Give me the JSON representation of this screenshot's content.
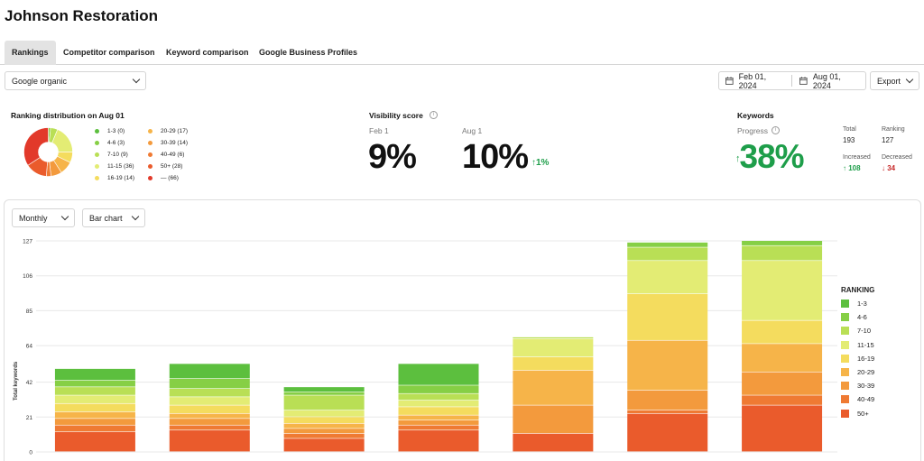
{
  "page": {
    "title": "Johnson Restoration"
  },
  "tabs": [
    {
      "label": "Rankings",
      "active": true
    },
    {
      "label": "Competitor comparison",
      "active": false
    },
    {
      "label": "Keyword comparison",
      "active": false
    },
    {
      "label": "Google Business Profiles",
      "active": false
    }
  ],
  "filters": {
    "engine": "Google organic",
    "date_from": "Feb 01, 2024",
    "date_to": "Aug 01, 2024",
    "export_label": "Export"
  },
  "distribution": {
    "title": "Ranking distribution on Aug 01",
    "items": [
      {
        "label": "1-3",
        "count": "(0)",
        "color": "#5cbf3e"
      },
      {
        "label": "4-6",
        "count": "(3)",
        "color": "#86cf45"
      },
      {
        "label": "7-10",
        "count": "(9)",
        "color": "#b9df55"
      },
      {
        "label": "11-15",
        "count": "(36)",
        "color": "#e3ec74"
      },
      {
        "label": "16-19",
        "count": "(14)",
        "color": "#f4dc5e"
      },
      {
        "label": "20-29",
        "count": "(17)",
        "color": "#f6b449"
      },
      {
        "label": "30-39",
        "count": "(14)",
        "color": "#f39a3d"
      },
      {
        "label": "40-49",
        "count": "(6)",
        "color": "#ef7a33"
      },
      {
        "label": "50+",
        "count": "(28)",
        "color": "#ea5b2c"
      },
      {
        "label": "—",
        "count": "(66)",
        "color": "#e2392a"
      }
    ]
  },
  "visibility": {
    "title": "Visibility score",
    "from_label": "Feb 1",
    "from_value": "9%",
    "to_label": "Aug 1",
    "to_value": "10%",
    "change": "1%"
  },
  "keywords": {
    "title": "Keywords",
    "progress_label": "Progress",
    "progress_value": "38%",
    "total_label": "Total",
    "total_value": "193",
    "ranking_label": "Ranking",
    "ranking_value": "127",
    "increased_label": "Increased",
    "increased_value": "108",
    "decreased_label": "Decreased",
    "decreased_value": "34"
  },
  "chart_controls": {
    "period": "Monthly",
    "chart_type": "Bar chart"
  },
  "chart_data": {
    "type": "bar",
    "stacked": true,
    "ylabel": "Total keywords",
    "yticks": [
      0,
      21,
      42,
      64,
      85,
      106,
      127
    ],
    "ylim": [
      0,
      127
    ],
    "categories": [
      "",
      "",
      "",
      "",
      "",
      "",
      ""
    ],
    "legend_title": "RANKING",
    "legend_position": "right",
    "series": [
      {
        "name": "50+",
        "color": "#ea5b2c",
        "values": [
          12,
          13,
          8,
          13,
          11,
          23,
          28
        ]
      },
      {
        "name": "40-49",
        "color": "#ef7a33",
        "values": [
          4,
          3,
          3,
          3,
          0,
          2,
          6
        ]
      },
      {
        "name": "30-39",
        "color": "#f39a3d",
        "values": [
          4,
          4,
          3,
          3,
          17,
          12,
          14
        ]
      },
      {
        "name": "20-29",
        "color": "#f6b449",
        "values": [
          4,
          3,
          3,
          3,
          21,
          30,
          17
        ]
      },
      {
        "name": "16-19",
        "color": "#f4dc5e",
        "values": [
          5,
          5,
          4,
          5,
          8,
          28,
          14
        ]
      },
      {
        "name": "11-15",
        "color": "#e3ec74",
        "values": [
          5,
          5,
          4,
          4,
          11,
          20,
          36
        ]
      },
      {
        "name": "7-10",
        "color": "#b9df55",
        "values": [
          5,
          5,
          9,
          4,
          1,
          8,
          9
        ]
      },
      {
        "name": "4-6",
        "color": "#86cf45",
        "values": [
          4,
          6,
          2,
          5,
          0,
          3,
          3
        ]
      },
      {
        "name": "1-3",
        "color": "#5cbf3e",
        "values": [
          7,
          9,
          3,
          13,
          0,
          0,
          0
        ]
      }
    ]
  }
}
